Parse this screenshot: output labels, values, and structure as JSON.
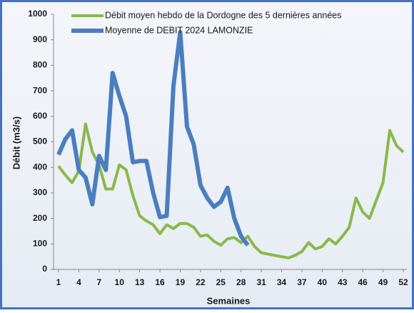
{
  "chart_data": {
    "type": "line",
    "x": [
      1,
      2,
      3,
      4,
      5,
      6,
      7,
      8,
      9,
      10,
      11,
      12,
      13,
      14,
      15,
      16,
      17,
      18,
      19,
      20,
      21,
      22,
      23,
      24,
      25,
      26,
      27,
      28,
      29,
      30,
      31,
      32,
      33,
      34,
      35,
      36,
      37,
      38,
      39,
      40,
      41,
      42,
      43,
      44,
      45,
      46,
      47,
      48,
      49,
      50,
      51,
      52
    ],
    "series": [
      {
        "name": "Débit moyen hebdo de la Dordogne des 5 dernières années",
        "color": "#8ab84a",
        "values": [
          405,
          370,
          340,
          385,
          570,
          460,
          410,
          315,
          315,
          410,
          390,
          290,
          210,
          190,
          175,
          140,
          175,
          160,
          180,
          180,
          165,
          130,
          135,
          110,
          95,
          120,
          125,
          105,
          130,
          90,
          65,
          60,
          55,
          50,
          45,
          55,
          70,
          105,
          80,
          90,
          120,
          100,
          130,
          165,
          280,
          225,
          200,
          270,
          340,
          545,
          485,
          460
        ]
      },
      {
        "name": "Moyenne de DEBIT 2024 LAMONZIE",
        "color": "#4a7ebf",
        "values": [
          450,
          510,
          545,
          390,
          360,
          255,
          445,
          390,
          770,
          680,
          600,
          420,
          425,
          425,
          300,
          205,
          210,
          720,
          930,
          560,
          490,
          330,
          280,
          245,
          265,
          320,
          200,
          130,
          95,
          null,
          null,
          null,
          null,
          null,
          null,
          null,
          null,
          null,
          null,
          null,
          null,
          null,
          null,
          null,
          null,
          null,
          null,
          null,
          null,
          null,
          null,
          null
        ]
      }
    ],
    "xlim": [
      1,
      52
    ],
    "xticks": [
      1,
      4,
      7,
      10,
      13,
      16,
      19,
      22,
      25,
      28,
      31,
      34,
      37,
      40,
      43,
      46,
      49,
      52
    ],
    "ylim": [
      0,
      1000
    ],
    "yticks": [
      0,
      100,
      200,
      300,
      400,
      500,
      600,
      700,
      800,
      900,
      1000
    ],
    "xlabel": "Semaines",
    "ylabel": "Débit (m3/s)",
    "grid": false
  }
}
